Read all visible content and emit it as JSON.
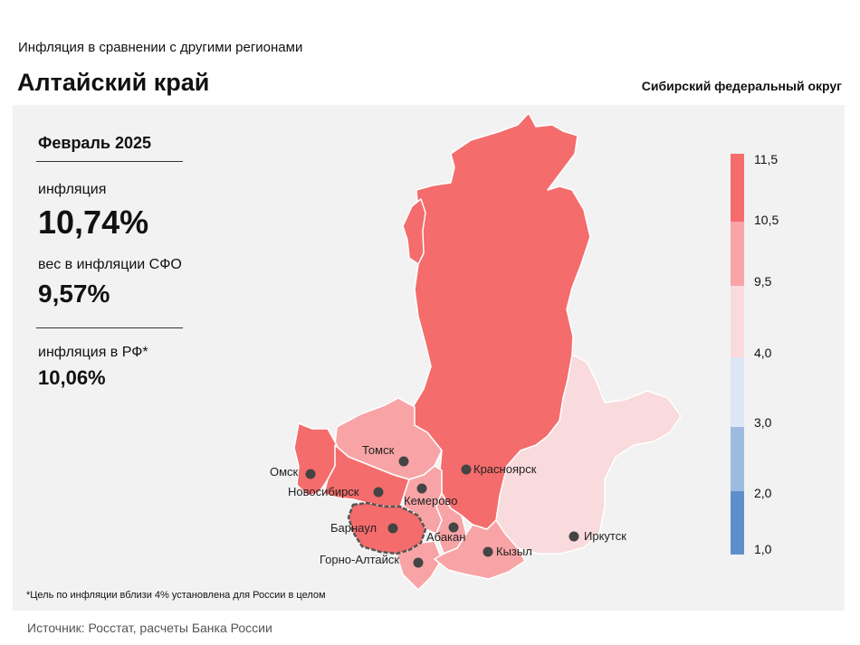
{
  "header": {
    "subtitle": "Инфляция в сравнении с другими регионами",
    "region": "Алтайский край",
    "district": "Сибирский федеральный округ"
  },
  "stats": {
    "period": "Февраль 2025",
    "inflation_label": "инфляция",
    "inflation_value": "10,74%",
    "weight_label": "вес в инфляции СФО",
    "weight_value": "9,57%",
    "rf_label": "инфляция в РФ*",
    "rf_value": "10,06%"
  },
  "legend": {
    "ticks": [
      "11,5",
      "10,5",
      "9,5",
      "4,0",
      "3,0",
      "2,0",
      "1,0"
    ],
    "colors": [
      "#f46c6c",
      "#f8a4a6",
      "#f9dadd",
      "#dde6f5",
      "#9dbbe0",
      "#5d8fcc"
    ]
  },
  "map": {
    "colors": {
      "band_top": "#f46c6c",
      "band_mid": "#f8a4a6",
      "band_low": "#f9dadd",
      "highlight_border": "#555555",
      "region_border": "#ffffff"
    },
    "regions": [
      {
        "name": "Красноярский край",
        "band": "band_top"
      },
      {
        "name": "Иркутская область",
        "band": "band_low"
      },
      {
        "name": "Томская область",
        "band": "band_mid"
      },
      {
        "name": "Омская область",
        "band": "band_top"
      },
      {
        "name": "Новосибирская область",
        "band": "band_top"
      },
      {
        "name": "Кемеровская область",
        "band": "band_mid"
      },
      {
        "name": "Алтайский край",
        "band": "band_top",
        "highlighted": true
      },
      {
        "name": "Республика Алтай",
        "band": "band_mid"
      },
      {
        "name": "Республика Хакасия",
        "band": "band_mid"
      },
      {
        "name": "Республика Тыва",
        "band": "band_mid"
      }
    ],
    "cities": [
      "Томск",
      "Омск",
      "Новосибирск",
      "Красноярск",
      "Кемерово",
      "Барнаул",
      "Абакан",
      "Горно-Алтайск",
      "Кызыл",
      "Иркутск"
    ]
  },
  "footnote": "*Цель по инфляции вблизи 4% установлена для России в целом",
  "source": "Источник: Росстат, расчеты Банка России"
}
